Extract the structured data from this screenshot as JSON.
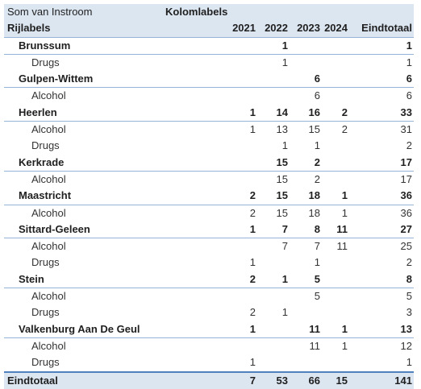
{
  "header": {
    "measure": "Som van Instroom",
    "column_labels": "Kolomlabels",
    "row_labels": "Rijlabels",
    "years": [
      "2021",
      "2022",
      "2023",
      "2024"
    ],
    "total_label": "Eindtotaal"
  },
  "groups": [
    {
      "name": "Brunssum",
      "values": [
        "",
        "1",
        "",
        ""
      ],
      "total": "1",
      "items": [
        {
          "name": "Drugs",
          "values": [
            "",
            "1",
            "",
            ""
          ],
          "total": "1"
        }
      ]
    },
    {
      "name": "Gulpen-Wittem",
      "values": [
        "",
        "",
        "6",
        ""
      ],
      "total": "6",
      "items": [
        {
          "name": "Alcohol",
          "values": [
            "",
            "",
            "6",
            ""
          ],
          "total": "6"
        }
      ]
    },
    {
      "name": "Heerlen",
      "values": [
        "1",
        "14",
        "16",
        "2"
      ],
      "total": "33",
      "items": [
        {
          "name": "Alcohol",
          "values": [
            "1",
            "13",
            "15",
            "2"
          ],
          "total": "31"
        },
        {
          "name": "Drugs",
          "values": [
            "",
            "1",
            "1",
            ""
          ],
          "total": "2"
        }
      ]
    },
    {
      "name": "Kerkrade",
      "values": [
        "",
        "15",
        "2",
        ""
      ],
      "total": "17",
      "items": [
        {
          "name": "Alcohol",
          "values": [
            "",
            "15",
            "2",
            ""
          ],
          "total": "17"
        }
      ]
    },
    {
      "name": "Maastricht",
      "values": [
        "2",
        "15",
        "18",
        "1"
      ],
      "total": "36",
      "items": [
        {
          "name": "Alcohol",
          "values": [
            "2",
            "15",
            "18",
            "1"
          ],
          "total": "36"
        }
      ]
    },
    {
      "name": "Sittard-Geleen",
      "values": [
        "1",
        "7",
        "8",
        "11"
      ],
      "total": "27",
      "items": [
        {
          "name": "Alcohol",
          "values": [
            "",
            "7",
            "7",
            "11"
          ],
          "total": "25"
        },
        {
          "name": "Drugs",
          "values": [
            "1",
            "",
            "1",
            ""
          ],
          "total": "2"
        }
      ]
    },
    {
      "name": "Stein",
      "values": [
        "2",
        "1",
        "5",
        ""
      ],
      "total": "8",
      "items": [
        {
          "name": "Alcohol",
          "values": [
            "",
            "",
            "5",
            ""
          ],
          "total": "5"
        },
        {
          "name": "Drugs",
          "values": [
            "2",
            "1",
            "",
            ""
          ],
          "total": "3"
        }
      ]
    },
    {
      "name": "Valkenburg Aan De Geul",
      "values": [
        "1",
        "",
        "11",
        "1"
      ],
      "total": "13",
      "items": [
        {
          "name": "Alcohol",
          "values": [
            "",
            "",
            "11",
            "1"
          ],
          "total": "12"
        },
        {
          "name": "Drugs",
          "values": [
            "1",
            "",
            "",
            ""
          ],
          "total": "1"
        }
      ]
    }
  ],
  "grand_total": {
    "label": "Eindtotaal",
    "values": [
      "7",
      "53",
      "66",
      "15"
    ],
    "total": "141"
  },
  "colors": {
    "header_bg": "#dce6f1",
    "rule": "#95b3d7",
    "grand_rule": "#4f81bd"
  }
}
